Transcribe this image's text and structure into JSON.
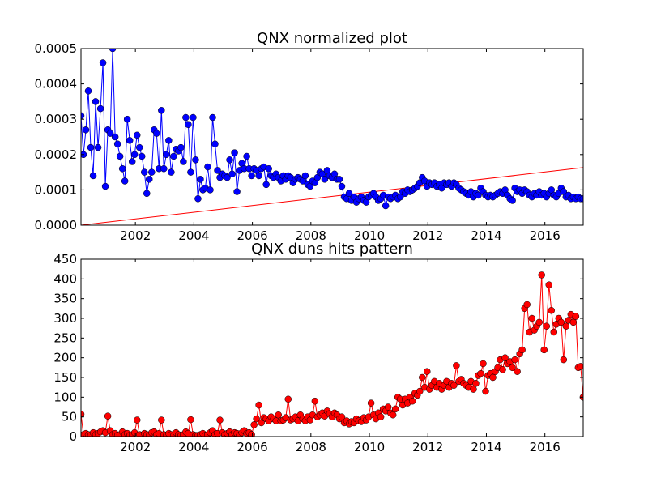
{
  "chart_data": [
    {
      "type": "line",
      "title": "QNX normalized plot",
      "xlim": [
        2000.14,
        2017.31
      ],
      "xticks": [
        2002,
        2004,
        2006,
        2008,
        2010,
        2012,
        2014,
        2016
      ],
      "ylim": [
        0,
        0.0005
      ],
      "yticks": [
        {
          "value": 0,
          "label": "0.0000"
        },
        {
          "value": 0.0001,
          "label": "0.0001"
        },
        {
          "value": 0.0002,
          "label": "0.0002"
        },
        {
          "value": 0.0003,
          "label": "0.0003"
        },
        {
          "value": 0.0004,
          "label": "0.0004"
        },
        {
          "value": 0.0005,
          "label": "0.0005"
        }
      ],
      "x": [
        2000.14,
        2000.223,
        2000.307,
        2000.39,
        2000.473,
        2000.557,
        2000.64,
        2000.723,
        2000.807,
        2000.89,
        2000.973,
        2001.057,
        2001.14,
        2001.223,
        2001.307,
        2001.39,
        2001.473,
        2001.557,
        2001.64,
        2001.723,
        2001.807,
        2001.89,
        2001.973,
        2002.057,
        2002.14,
        2002.223,
        2002.307,
        2002.39,
        2002.473,
        2002.557,
        2002.64,
        2002.723,
        2002.807,
        2002.89,
        2002.973,
        2003.057,
        2003.14,
        2003.223,
        2003.307,
        2003.39,
        2003.473,
        2003.557,
        2003.64,
        2003.723,
        2003.807,
        2003.89,
        2003.973,
        2004.057,
        2004.14,
        2004.223,
        2004.307,
        2004.39,
        2004.473,
        2004.557,
        2004.64,
        2004.723,
        2004.807,
        2004.89,
        2004.973,
        2005.057,
        2005.14,
        2005.223,
        2005.307,
        2005.39,
        2005.473,
        2005.557,
        2005.64,
        2005.723,
        2005.807,
        2005.89,
        2005.973,
        2006.057,
        2006.14,
        2006.223,
        2006.307,
        2006.39,
        2006.473,
        2006.557,
        2006.64,
        2006.723,
        2006.807,
        2006.89,
        2006.973,
        2007.057,
        2007.14,
        2007.223,
        2007.307,
        2007.39,
        2007.473,
        2007.557,
        2007.64,
        2007.723,
        2007.807,
        2007.89,
        2007.973,
        2008.057,
        2008.14,
        2008.223,
        2008.307,
        2008.39,
        2008.473,
        2008.557,
        2008.64,
        2008.723,
        2008.807,
        2008.89,
        2008.973,
        2009.057,
        2009.14,
        2009.223,
        2009.307,
        2009.39,
        2009.473,
        2009.557,
        2009.64,
        2009.723,
        2009.807,
        2009.89,
        2009.973,
        2010.057,
        2010.14,
        2010.223,
        2010.307,
        2010.39,
        2010.473,
        2010.557,
        2010.64,
        2010.723,
        2010.807,
        2010.89,
        2010.973,
        2011.057,
        2011.14,
        2011.223,
        2011.307,
        2011.39,
        2011.473,
        2011.557,
        2011.64,
        2011.723,
        2011.807,
        2011.89,
        2011.973,
        2012.057,
        2012.14,
        2012.223,
        2012.307,
        2012.39,
        2012.473,
        2012.557,
        2012.64,
        2012.723,
        2012.807,
        2012.89,
        2012.973,
        2013.057,
        2013.14,
        2013.223,
        2013.307,
        2013.39,
        2013.473,
        2013.557,
        2013.64,
        2013.723,
        2013.807,
        2013.89,
        2013.973,
        2014.057,
        2014.14,
        2014.223,
        2014.307,
        2014.39,
        2014.473,
        2014.557,
        2014.64,
        2014.723,
        2014.807,
        2014.89,
        2014.973,
        2015.057,
        2015.14,
        2015.223,
        2015.307,
        2015.39,
        2015.473,
        2015.557,
        2015.64,
        2015.723,
        2015.807,
        2015.89,
        2015.973,
        2016.057,
        2016.14,
        2016.223,
        2016.307,
        2016.39,
        2016.473,
        2016.557,
        2016.64,
        2016.723,
        2016.807,
        2016.89,
        2016.973,
        2017.057,
        2017.14,
        2017.223,
        2017.307
      ],
      "series": [
        {
          "color": "#0000ff",
          "marker": "o",
          "values": [
            0.00031,
            0.0002,
            0.00027,
            0.00038,
            0.00022,
            0.00014,
            0.00035,
            0.00022,
            0.00033,
            0.00046,
            0.00011,
            0.00027,
            0.00026,
            0.0005,
            0.00025,
            0.00023,
            0.000195,
            0.00016,
            0.000125,
            0.0003,
            0.00024,
            0.00018,
            0.0002,
            0.000255,
            0.00022,
            0.000195,
            0.00015,
            9e-05,
            0.00013,
            0.00015,
            0.00027,
            0.00026,
            0.00016,
            0.000325,
            0.00016,
            0.0002,
            0.00024,
            0.00015,
            0.000195,
            0.000215,
            0.00021,
            0.00022,
            0.00018,
            0.000305,
            0.000285,
            0.00015,
            0.000305,
            0.000185,
            7.5e-05,
            0.00013,
            0.0001,
            0.000105,
            0.000165,
            0.0001,
            0.000305,
            0.00023,
            0.000155,
            0.000135,
            0.000145,
            0.00014,
            0.000135,
            0.000185,
            0.000145,
            0.000205,
            9.5e-05,
            0.000155,
            0.000175,
            0.00016,
            0.000195,
            0.00016,
            0.00014,
            0.00016,
            0.000155,
            0.00014,
            0.00016,
            0.000165,
            0.000115,
            0.00016,
            0.00014,
            0.000135,
            0.000145,
            0.000135,
            0.000125,
            0.00014,
            0.00013,
            0.00014,
            0.000135,
            0.00012,
            0.00013,
            0.000135,
            0.00013,
            0.000125,
            0.00014,
            0.000115,
            0.00011,
            0.000125,
            0.00012,
            0.000135,
            0.00015,
            0.000145,
            0.00013,
            0.000155,
            0.00014,
            0.000135,
            0.000145,
            0.00013,
            0.00013,
            0.00011,
            8e-05,
            7.5e-05,
            9e-05,
            7e-05,
            8e-05,
            6.5e-05,
            7.5e-05,
            8e-05,
            7e-05,
            6.5e-05,
            8e-05,
            8.5e-05,
            9e-05,
            8e-05,
            7e-05,
            7.5e-05,
            8.5e-05,
            5.5e-05,
            8e-05,
            7.5e-05,
            8e-05,
            8.5e-05,
            7.5e-05,
            8e-05,
            9.5e-05,
            9e-05,
            0.0001,
            9.5e-05,
            0.0001,
            0.000105,
            0.00011,
            0.00012,
            0.000135,
            0.000125,
            0.00011,
            0.00012,
            0.000115,
            0.00012,
            0.00011,
            0.000115,
            0.000105,
            0.00012,
            0.000115,
            0.00012,
            0.00011,
            0.00012,
            0.000115,
            0.000105,
            0.0001,
            9.5e-05,
            9e-05,
            8.5e-05,
            9.5e-05,
            8e-05,
            9e-05,
            8.5e-05,
            0.000105,
            9.5e-05,
            8.5e-05,
            8e-05,
            8.5e-05,
            8e-05,
            8.5e-05,
            9e-05,
            9.5e-05,
            9e-05,
            0.0001,
            8.5e-05,
            7.5e-05,
            7e-05,
            0.000105,
            9.5e-05,
            0.0001,
            9e-05,
            0.0001,
            9.5e-05,
            8.5e-05,
            8e-05,
            9e-05,
            8.5e-05,
            9.5e-05,
            8.5e-05,
            9e-05,
            8e-05,
            9e-05,
            0.0001,
            8.5e-05,
            8e-05,
            9e-05,
            0.000105,
            9.5e-05,
            8e-05,
            8.5e-05,
            7.5e-05,
            8e-05,
            7.5e-05,
            8e-05,
            7.5e-05,
            7.5e-05
          ]
        }
      ],
      "trend": {
        "color": "#ff0000",
        "x": [
          2000.14,
          2017.31
        ],
        "values": [
          0,
          0.000163
        ]
      }
    },
    {
      "type": "line",
      "title": "QNX duns hits pattern",
      "xlim": [
        2000.14,
        2017.31
      ],
      "xticks": [
        2002,
        2004,
        2006,
        2008,
        2010,
        2012,
        2014,
        2016
      ],
      "ylim": [
        0,
        450
      ],
      "yticks": [
        0,
        50,
        100,
        150,
        200,
        250,
        300,
        350,
        400,
        450
      ],
      "x": [
        2000.14,
        2000.223,
        2000.307,
        2000.39,
        2000.473,
        2000.557,
        2000.64,
        2000.723,
        2000.807,
        2000.89,
        2000.973,
        2001.057,
        2001.14,
        2001.223,
        2001.307,
        2001.39,
        2001.473,
        2001.557,
        2001.64,
        2001.723,
        2001.807,
        2001.89,
        2001.973,
        2002.057,
        2002.14,
        2002.223,
        2002.307,
        2002.39,
        2002.473,
        2002.557,
        2002.64,
        2002.723,
        2002.807,
        2002.89,
        2002.973,
        2003.057,
        2003.14,
        2003.223,
        2003.307,
        2003.39,
        2003.473,
        2003.557,
        2003.64,
        2003.723,
        2003.807,
        2003.89,
        2003.973,
        2004.057,
        2004.14,
        2004.223,
        2004.307,
        2004.39,
        2004.473,
        2004.557,
        2004.64,
        2004.723,
        2004.807,
        2004.89,
        2004.973,
        2005.057,
        2005.14,
        2005.223,
        2005.307,
        2005.39,
        2005.473,
        2005.557,
        2005.64,
        2005.723,
        2005.807,
        2005.89,
        2005.973,
        2006.057,
        2006.14,
        2006.223,
        2006.307,
        2006.39,
        2006.473,
        2006.557,
        2006.64,
        2006.723,
        2006.807,
        2006.89,
        2006.973,
        2007.057,
        2007.14,
        2007.223,
        2007.307,
        2007.39,
        2007.473,
        2007.557,
        2007.64,
        2007.723,
        2007.807,
        2007.89,
        2007.973,
        2008.057,
        2008.14,
        2008.223,
        2008.307,
        2008.39,
        2008.473,
        2008.557,
        2008.64,
        2008.723,
        2008.807,
        2008.89,
        2008.973,
        2009.057,
        2009.14,
        2009.223,
        2009.307,
        2009.39,
        2009.473,
        2009.557,
        2009.64,
        2009.723,
        2009.807,
        2009.89,
        2009.973,
        2010.057,
        2010.14,
        2010.223,
        2010.307,
        2010.39,
        2010.473,
        2010.557,
        2010.64,
        2010.723,
        2010.807,
        2010.89,
        2010.973,
        2011.057,
        2011.14,
        2011.223,
        2011.307,
        2011.39,
        2011.473,
        2011.557,
        2011.64,
        2011.723,
        2011.807,
        2011.89,
        2011.973,
        2012.057,
        2012.14,
        2012.223,
        2012.307,
        2012.39,
        2012.473,
        2012.557,
        2012.64,
        2012.723,
        2012.807,
        2012.89,
        2012.973,
        2013.057,
        2013.14,
        2013.223,
        2013.307,
        2013.39,
        2013.473,
        2013.557,
        2013.64,
        2013.723,
        2013.807,
        2013.89,
        2013.973,
        2014.057,
        2014.14,
        2014.223,
        2014.307,
        2014.39,
        2014.473,
        2014.557,
        2014.64,
        2014.723,
        2014.807,
        2014.89,
        2014.973,
        2015.057,
        2015.14,
        2015.223,
        2015.307,
        2015.39,
        2015.473,
        2015.557,
        2015.64,
        2015.723,
        2015.807,
        2015.89,
        2015.973,
        2016.057,
        2016.14,
        2016.223,
        2016.307,
        2016.39,
        2016.473,
        2016.557,
        2016.64,
        2016.723,
        2016.807,
        2016.89,
        2016.973,
        2017.057,
        2017.14,
        2017.223,
        2017.307
      ],
      "series": [
        {
          "color": "#ff0000",
          "marker": "o",
          "values": [
            57,
            5,
            8,
            5,
            3,
            10,
            5,
            8,
            12,
            15,
            10,
            52,
            15,
            5,
            8,
            3,
            5,
            12,
            5,
            8,
            3,
            5,
            10,
            42,
            5,
            3,
            8,
            5,
            3,
            10,
            12,
            5,
            8,
            42,
            5,
            3,
            8,
            5,
            3,
            10,
            5,
            3,
            5,
            12,
            8,
            43,
            5,
            3,
            3,
            5,
            8,
            3,
            5,
            10,
            15,
            5,
            8,
            42,
            10,
            5,
            8,
            12,
            5,
            10,
            8,
            3,
            10,
            15,
            8,
            10,
            5,
            30,
            45,
            80,
            35,
            48,
            45,
            40,
            50,
            45,
            40,
            55,
            40,
            42,
            48,
            95,
            42,
            45,
            50,
            40,
            55,
            45,
            40,
            50,
            42,
            55,
            90,
            50,
            55,
            60,
            52,
            65,
            58,
            50,
            60,
            55,
            45,
            50,
            35,
            40,
            32,
            38,
            35,
            45,
            40,
            38,
            48,
            42,
            50,
            85,
            55,
            45,
            60,
            50,
            70,
            65,
            75,
            60,
            55,
            70,
            100,
            95,
            80,
            95,
            85,
            100,
            90,
            110,
            105,
            115,
            150,
            125,
            165,
            120,
            130,
            140,
            125,
            135,
            120,
            130,
            140,
            125,
            135,
            130,
            180,
            140,
            145,
            135,
            130,
            125,
            140,
            120,
            135,
            155,
            160,
            185,
            115,
            155,
            160,
            150,
            165,
            175,
            195,
            170,
            200,
            185,
            190,
            175,
            195,
            165,
            210,
            220,
            325,
            335,
            265,
            300,
            270,
            280,
            290,
            410,
            220,
            280,
            385,
            320,
            265,
            285,
            300,
            290,
            195,
            280,
            295,
            310,
            290,
            305,
            175,
            178,
            100
          ]
        }
      ]
    }
  ]
}
